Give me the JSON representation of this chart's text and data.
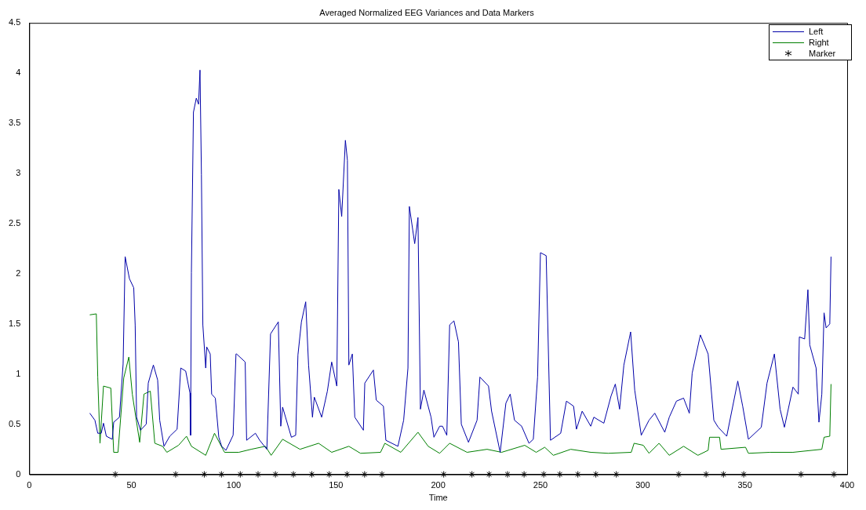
{
  "chart_data": {
    "type": "line",
    "title": "Averaged Normalized EEG Variances and Data Markers",
    "xlabel": "Time",
    "xlim": [
      0,
      400
    ],
    "xticks": [
      0,
      50,
      100,
      150,
      200,
      250,
      300,
      350,
      400
    ],
    "ylim": [
      0,
      4.5
    ],
    "yticks": [
      0,
      0.5,
      1,
      1.5,
      2,
      2.5,
      3,
      3.5,
      4,
      4.5
    ],
    "grid": false,
    "legend": "top right",
    "marker": "none",
    "line_style": "solid",
    "series": [
      {
        "name": "Left",
        "color": "#0000a8",
        "x": [
          29.6,
          32.1,
          33.5,
          35.2,
          36.3,
          37.7,
          40.6,
          41.3,
          44.1,
          45.9,
          46.9,
          49,
          51.1,
          51.8,
          52.5,
          54.4,
          57.2,
          58.2,
          60.7,
          62.8,
          63.8,
          65.9,
          68.7,
          72.3,
          74.1,
          76.5,
          78.6,
          78.9,
          79.3,
          80.3,
          81.7,
          82.8,
          83.5,
          84.2,
          84.9,
          86.3,
          86.8,
          88.5,
          89.2,
          91,
          92.7,
          94.1,
          96.2,
          99.7,
          101.1,
          101.4,
          105.6,
          106.3,
          110.6,
          112.7,
          116.2,
          118,
          121.8,
          123,
          123.9,
          128.2,
          130.3,
          131.4,
          133.1,
          135.2,
          136.6,
          138.5,
          139.4,
          143,
          145.8,
          147.9,
          150.4,
          151.4,
          152.8,
          154.6,
          155.6,
          156.3,
          158,
          159.2,
          163.4,
          164.1,
          168.3,
          169.7,
          173.2,
          174.4,
          180.3,
          183.1,
          185.2,
          185.9,
          188.5,
          190.1,
          191.3,
          193,
          196.5,
          197.9,
          200.7,
          202.1,
          204.2,
          205.6,
          207.7,
          209.9,
          211.3,
          214.8,
          219,
          220.4,
          224.6,
          226.1,
          230.3,
          233.1,
          235.2,
          237.3,
          240.8,
          244.4,
          246.5,
          248.6,
          250,
          252.8,
          254.9,
          259.9,
          262.7,
          266.2,
          267.6,
          270.4,
          274.6,
          276.1,
          281,
          284.5,
          286.6,
          288.7,
          290.8,
          294.1,
          296.1,
          299.3,
          303.1,
          305.9,
          310.8,
          313,
          316.5,
          320,
          322.8,
          324.2,
          328.2,
          332,
          334.8,
          336.9,
          341.1,
          346.5,
          348.9,
          351.7,
          358,
          360.8,
          364.4,
          367.2,
          369.3,
          373.5,
          376.1,
          376.6,
          379.2,
          380.8,
          381.7,
          384.8,
          386.2,
          387.6,
          388.7,
          389.7,
          391.5,
          392.1
        ],
        "values": [
          0.61,
          0.54,
          0.41,
          0.41,
          0.51,
          0.38,
          0.35,
          0.52,
          0.57,
          1.1,
          2.17,
          1.95,
          1.86,
          1.49,
          0.57,
          0.44,
          0.5,
          0.91,
          1.09,
          0.94,
          0.54,
          0.28,
          0.38,
          0.45,
          1.06,
          1.03,
          0.81,
          0.39,
          2.01,
          3.61,
          3.75,
          3.69,
          4.03,
          2.99,
          1.49,
          1.06,
          1.27,
          1.2,
          0.8,
          0.76,
          0.37,
          0.28,
          0.24,
          0.39,
          1.2,
          1.2,
          1.12,
          0.34,
          0.41,
          0.34,
          0.25,
          1.4,
          1.52,
          0.48,
          0.67,
          0.37,
          0.39,
          1.19,
          1.52,
          1.72,
          1.09,
          0.57,
          0.77,
          0.57,
          0.83,
          1.12,
          0.88,
          2.84,
          2.57,
          3.33,
          3.13,
          1.09,
          1.2,
          0.57,
          0.44,
          0.91,
          1.04,
          0.74,
          0.68,
          0.34,
          0.28,
          0.54,
          1.06,
          2.67,
          2.3,
          2.56,
          0.65,
          0.84,
          0.57,
          0.37,
          0.48,
          0.48,
          0.39,
          1.49,
          1.53,
          1.32,
          0.5,
          0.32,
          0.54,
          0.97,
          0.88,
          0.63,
          0.22,
          0.71,
          0.8,
          0.54,
          0.48,
          0.31,
          0.35,
          0.97,
          2.21,
          2.18,
          0.34,
          0.41,
          0.73,
          0.68,
          0.45,
          0.63,
          0.48,
          0.57,
          0.51,
          0.78,
          0.9,
          0.65,
          1.09,
          1.42,
          0.84,
          0.39,
          0.54,
          0.61,
          0.42,
          0.57,
          0.73,
          0.76,
          0.61,
          1.01,
          1.39,
          1.2,
          0.54,
          0.47,
          0.38,
          0.93,
          0.68,
          0.35,
          0.47,
          0.91,
          1.2,
          0.65,
          0.47,
          0.87,
          0.8,
          1.37,
          1.35,
          1.84,
          1.29,
          1.06,
          0.52,
          0.8,
          1.61,
          1.46,
          1.5,
          2.17
        ]
      },
      {
        "name": "Right",
        "color": "#007f00",
        "x": [
          29.6,
          32.8,
          33.5,
          34.6,
          36.3,
          39.9,
          41.3,
          43.4,
          46.2,
          48.7,
          50.4,
          54,
          56.1,
          59.2,
          61.4,
          65.2,
          67.3,
          73,
          76.9,
          79.3,
          86.3,
          90.6,
          95.5,
          102.5,
          108.5,
          115.5,
          118.3,
          123.9,
          132.4,
          141.5,
          147.9,
          156.3,
          162,
          171.8,
          173.9,
          181.7,
          190.1,
          195.1,
          200.7,
          205.6,
          214.1,
          223.9,
          231,
          242.3,
          247.9,
          252.1,
          256.3,
          264.8,
          274.6,
          283.1,
          294.4,
          295.8,
          300.3,
          303.1,
          308,
          313,
          320,
          327,
          332,
          332.7,
          337.6,
          338.3,
          350.3,
          351.7,
          362.3,
          373.5,
          387.6,
          388.7,
          391.5,
          392.1
        ],
        "values": [
          1.59,
          1.6,
          0.97,
          0.31,
          0.88,
          0.86,
          0.22,
          0.22,
          0.96,
          1.17,
          0.8,
          0.32,
          0.8,
          0.83,
          0.31,
          0.28,
          0.22,
          0.29,
          0.38,
          0.28,
          0.19,
          0.41,
          0.22,
          0.22,
          0.25,
          0.28,
          0.19,
          0.35,
          0.25,
          0.31,
          0.22,
          0.28,
          0.21,
          0.22,
          0.31,
          0.22,
          0.42,
          0.28,
          0.21,
          0.31,
          0.22,
          0.25,
          0.22,
          0.29,
          0.22,
          0.27,
          0.19,
          0.25,
          0.22,
          0.21,
          0.22,
          0.31,
          0.29,
          0.21,
          0.31,
          0.19,
          0.28,
          0.19,
          0.24,
          0.37,
          0.37,
          0.25,
          0.27,
          0.21,
          0.22,
          0.22,
          0.25,
          0.37,
          0.38,
          0.9
        ]
      },
      {
        "name": "Marker",
        "type": "scatter",
        "marker": "cross",
        "color": "#000000",
        "x": [
          42.1,
          71.6,
          85.6,
          94,
          103.2,
          111.9,
          120.4,
          129.2,
          138.2,
          146.7,
          155.4,
          164,
          172.5,
          202.7,
          216.5,
          224.9,
          233.9,
          242,
          251.6,
          259.5,
          268.3,
          277.1,
          287.1,
          317.6,
          331,
          339.5,
          349.4,
          377.4,
          393.5
        ],
        "values": [
          0,
          0,
          0,
          0,
          0,
          0,
          0,
          0,
          0,
          0,
          0,
          0,
          0,
          0,
          0,
          0,
          0,
          0,
          0,
          0,
          0,
          0,
          0,
          0,
          0,
          0,
          0,
          0,
          0
        ]
      }
    ]
  }
}
